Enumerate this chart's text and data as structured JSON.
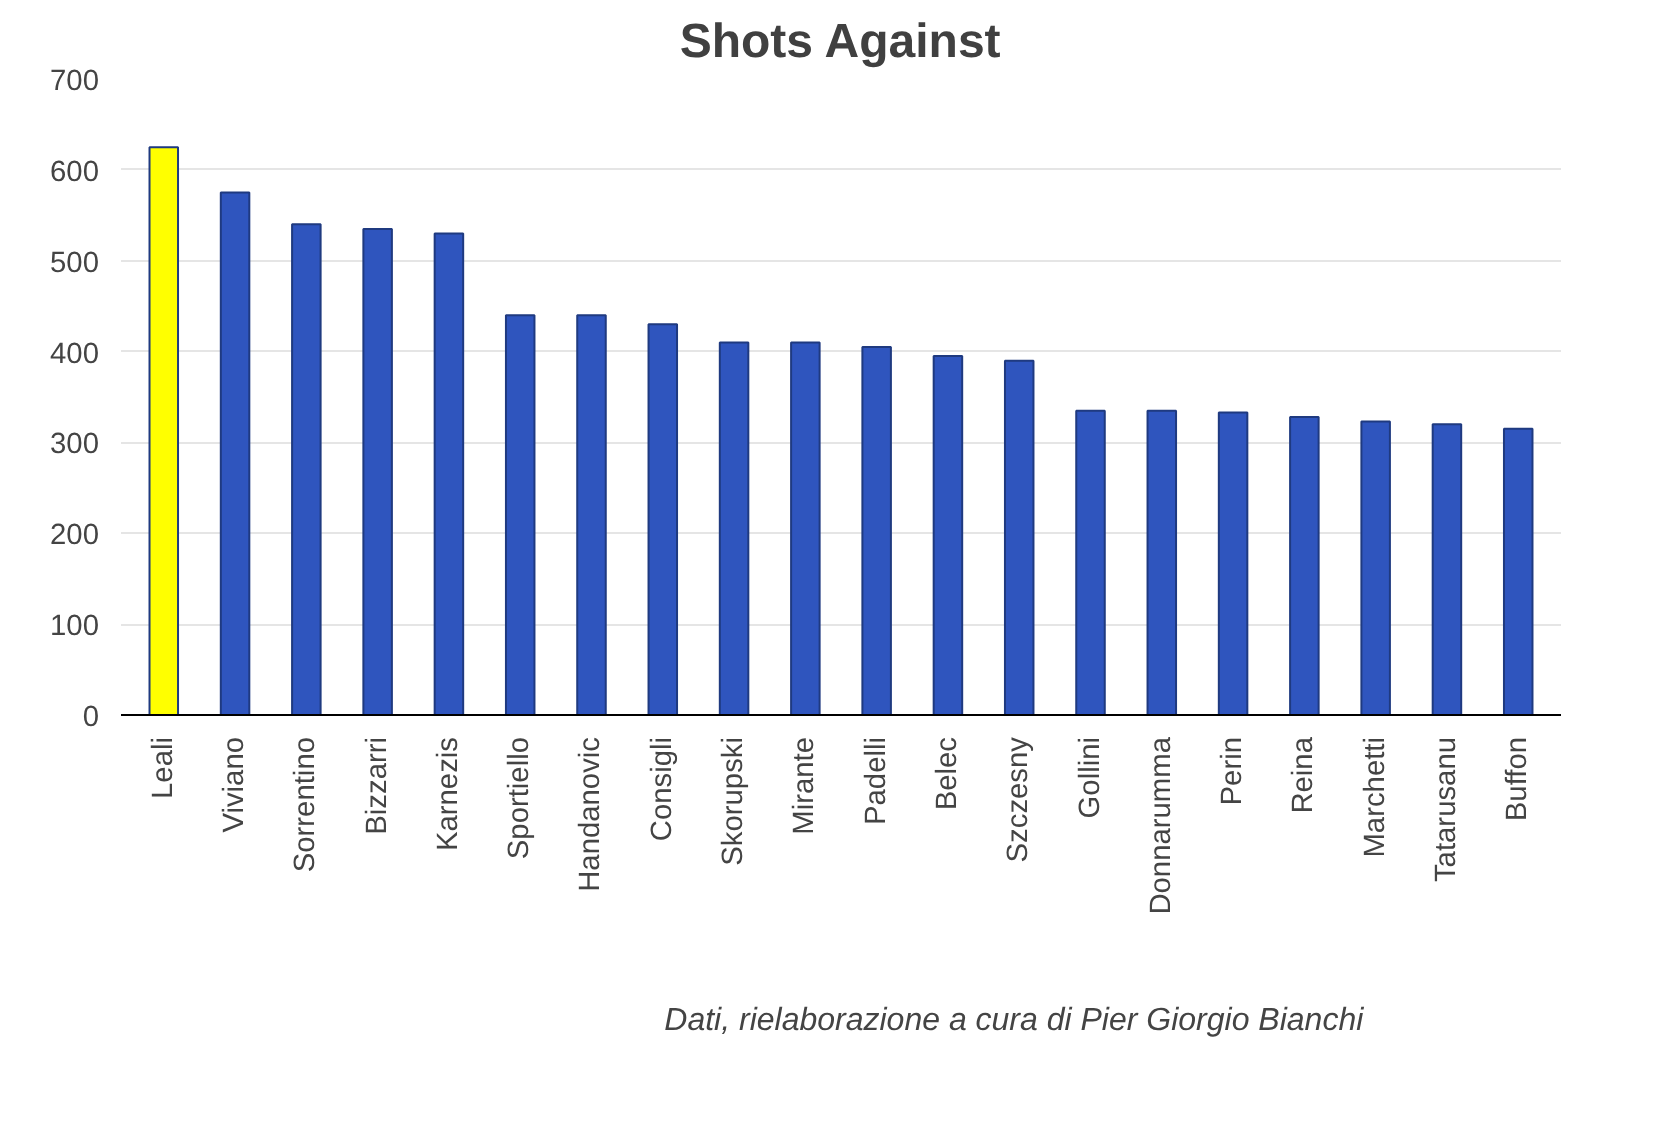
{
  "chart_data": {
    "type": "bar",
    "title": "Shots Against",
    "categories": [
      "Leali",
      "Viviano",
      "Sorrentino",
      "Bizzarri",
      "Karnezis",
      "Sportiello",
      "Handanovic",
      "Consigli",
      "Skorupski",
      "Mirante",
      "Padelli",
      "Belec",
      "Szczesny",
      "Gollini",
      "Donnarumma",
      "Perin",
      "Reina",
      "Marchetti",
      "Tatarusanu",
      "Buffon"
    ],
    "values": [
      625,
      575,
      540,
      535,
      530,
      440,
      440,
      430,
      410,
      410,
      405,
      395,
      390,
      335,
      335,
      333,
      328,
      323,
      320,
      315
    ],
    "colors": [
      "#ffff00",
      "#2f55be",
      "#2f55be",
      "#2f55be",
      "#2f55be",
      "#2f55be",
      "#2f55be",
      "#2f55be",
      "#2f55be",
      "#2f55be",
      "#2f55be",
      "#2f55be",
      "#2f55be",
      "#2f55be",
      "#2f55be",
      "#2f55be",
      "#2f55be",
      "#2f55be",
      "#2f55be",
      "#2f55be"
    ],
    "ylim": [
      0,
      700
    ],
    "yticks": [
      0,
      100,
      200,
      300,
      400,
      500,
      600,
      700
    ],
    "grid": "y",
    "annotations": [
      "Dati, rielaborazione a cura di Pier Giorgio Bianchi"
    ]
  }
}
